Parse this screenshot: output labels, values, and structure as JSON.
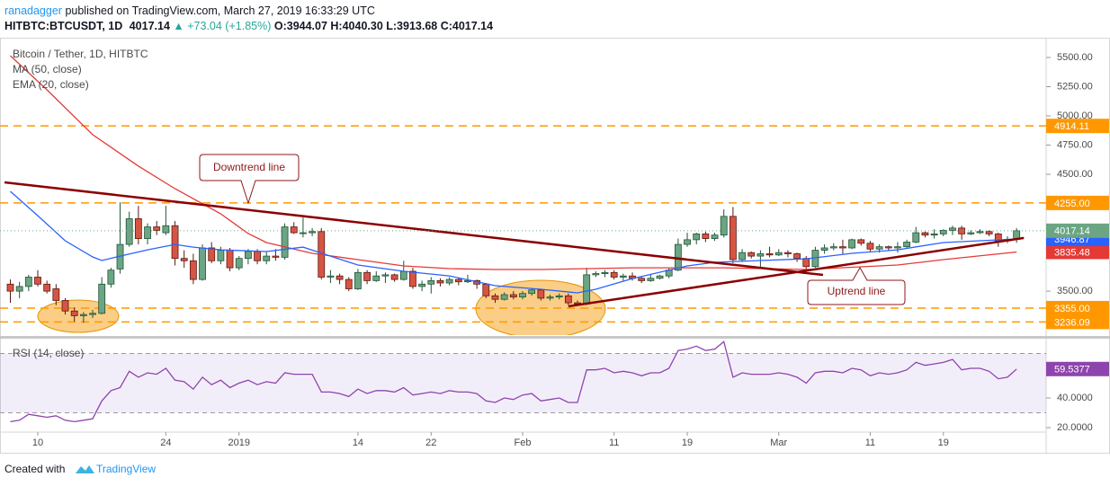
{
  "header": {
    "publisher": "ranadagger",
    "published": "published on TradingView.com, March 27, 2019 16:33:29 UTC",
    "symbol": "HITBTC:BTCUSDT, 1D",
    "last": "4017.14",
    "change": "▲ +73.04 (+1.85%)",
    "ohlc": "O:3944.07 H:4040.30 L:3913.68 C:4017.14"
  },
  "footer": {
    "created": "Created with",
    "brand": "TradingView"
  },
  "chart_data": [
    {
      "type": "candlestick",
      "title": "Bitcoin / Tether, 1D, HITBTC",
      "up_color": "#6ba583",
      "down_color": "#d75442",
      "xlim": [
        -1.13,
        113.23
      ],
      "ylim": [
        3124,
        5669
      ],
      "yticks": [
        {
          "value": 3500,
          "label": "3500.00"
        },
        {
          "value": 4500,
          "label": "4500.00"
        },
        {
          "value": 4750,
          "label": "4750.00"
        },
        {
          "value": 5000,
          "label": "5000.00"
        },
        {
          "value": 5250,
          "label": "5250.00"
        },
        {
          "value": 5500,
          "label": "5500.00"
        }
      ],
      "ohlc": [
        [
          3560,
          3600,
          3400,
          3500
        ],
        [
          3500,
          3580,
          3440,
          3540
        ],
        [
          3540,
          3640,
          3500,
          3620
        ],
        [
          3620,
          3680,
          3540,
          3560
        ],
        [
          3560,
          3590,
          3480,
          3500
        ],
        [
          3520,
          3560,
          3380,
          3420
        ],
        [
          3420,
          3440,
          3300,
          3330
        ],
        [
          3330,
          3360,
          3240,
          3290
        ],
        [
          3290,
          3320,
          3230,
          3300
        ],
        [
          3300,
          3340,
          3270,
          3310
        ],
        [
          3310,
          3620,
          3300,
          3560
        ],
        [
          3560,
          3700,
          3530,
          3680
        ],
        [
          3690,
          4260,
          3650,
          3900
        ],
        [
          3900,
          4180,
          3880,
          4120
        ],
        [
          4120,
          4230,
          3900,
          3950
        ],
        [
          3950,
          4080,
          3900,
          4050
        ],
        [
          4050,
          4100,
          3980,
          4020
        ],
        [
          4000,
          4230,
          3980,
          4060
        ],
        [
          4060,
          4100,
          3720,
          3780
        ],
        [
          3780,
          3850,
          3700,
          3760
        ],
        [
          3760,
          3820,
          3560,
          3600
        ],
        [
          3600,
          3900,
          3590,
          3870
        ],
        [
          3870,
          3920,
          3740,
          3760
        ],
        [
          3760,
          3880,
          3730,
          3850
        ],
        [
          3850,
          3870,
          3670,
          3700
        ],
        [
          3700,
          3800,
          3680,
          3780
        ],
        [
          3780,
          3860,
          3730,
          3840
        ],
        [
          3840,
          3860,
          3730,
          3760
        ],
        [
          3760,
          3840,
          3730,
          3800
        ],
        [
          3800,
          3860,
          3760,
          3790
        ],
        [
          3790,
          4080,
          3770,
          4050
        ],
        [
          4050,
          4090,
          3990,
          4000
        ],
        [
          4000,
          4130,
          3960,
          4000
        ],
        [
          4000,
          4040,
          3970,
          4010
        ],
        [
          4010,
          4040,
          3600,
          3620
        ],
        [
          3620,
          3680,
          3570,
          3630
        ],
        [
          3630,
          3650,
          3560,
          3600
        ],
        [
          3600,
          3620,
          3500,
          3520
        ],
        [
          3520,
          3690,
          3510,
          3660
        ],
        [
          3660,
          3680,
          3560,
          3590
        ],
        [
          3590,
          3670,
          3580,
          3630
        ],
        [
          3630,
          3660,
          3570,
          3640
        ],
        [
          3640,
          3650,
          3580,
          3600
        ],
        [
          3600,
          3760,
          3590,
          3670
        ],
        [
          3670,
          3700,
          3520,
          3540
        ],
        [
          3540,
          3590,
          3500,
          3560
        ],
        [
          3560,
          3620,
          3480,
          3590
        ],
        [
          3590,
          3610,
          3540,
          3570
        ],
        [
          3570,
          3620,
          3550,
          3600
        ],
        [
          3600,
          3610,
          3550,
          3580
        ],
        [
          3580,
          3640,
          3570,
          3590
        ],
        [
          3590,
          3600,
          3520,
          3560
        ],
        [
          3560,
          3570,
          3440,
          3460
        ],
        [
          3460,
          3480,
          3400,
          3430
        ],
        [
          3430,
          3490,
          3420,
          3470
        ],
        [
          3470,
          3500,
          3430,
          3450
        ],
        [
          3450,
          3500,
          3430,
          3480
        ],
        [
          3480,
          3520,
          3460,
          3510
        ],
        [
          3510,
          3520,
          3420,
          3440
        ],
        [
          3440,
          3470,
          3420,
          3450
        ],
        [
          3450,
          3480,
          3430,
          3460
        ],
        [
          3460,
          3480,
          3380,
          3400
        ],
        [
          3400,
          3420,
          3380,
          3390
        ],
        [
          3390,
          3700,
          3380,
          3640
        ],
        [
          3640,
          3670,
          3620,
          3650
        ],
        [
          3650,
          3680,
          3620,
          3660
        ],
        [
          3660,
          3680,
          3600,
          3620
        ],
        [
          3620,
          3650,
          3590,
          3630
        ],
        [
          3630,
          3660,
          3590,
          3610
        ],
        [
          3610,
          3630,
          3570,
          3590
        ],
        [
          3590,
          3640,
          3580,
          3610
        ],
        [
          3610,
          3640,
          3600,
          3630
        ],
        [
          3630,
          3700,
          3610,
          3680
        ],
        [
          3680,
          3950,
          3670,
          3900
        ],
        [
          3900,
          4000,
          3880,
          3940
        ],
        [
          3940,
          4000,
          3900,
          3990
        ],
        [
          3990,
          4010,
          3920,
          3950
        ],
        [
          3950,
          4000,
          3930,
          3980
        ],
        [
          3980,
          4200,
          3960,
          4140
        ],
        [
          4140,
          4220,
          3740,
          3770
        ],
        [
          3770,
          3860,
          3750,
          3830
        ],
        [
          3830,
          3840,
          3780,
          3800
        ],
        [
          3800,
          3850,
          3700,
          3820
        ],
        [
          3820,
          3880,
          3790,
          3810
        ],
        [
          3810,
          3860,
          3800,
          3830
        ],
        [
          3830,
          3850,
          3790,
          3820
        ],
        [
          3820,
          3830,
          3750,
          3780
        ],
        [
          3780,
          3800,
          3680,
          3710
        ],
        [
          3710,
          3880,
          3700,
          3850
        ],
        [
          3850,
          3900,
          3820,
          3870
        ],
        [
          3870,
          3910,
          3850,
          3880
        ],
        [
          3880,
          3940,
          3820,
          3870
        ],
        [
          3870,
          3950,
          3860,
          3940
        ],
        [
          3940,
          3950,
          3890,
          3910
        ],
        [
          3910,
          3930,
          3840,
          3860
        ],
        [
          3860,
          3900,
          3830,
          3880
        ],
        [
          3880,
          3890,
          3850,
          3870
        ],
        [
          3870,
          3920,
          3830,
          3880
        ],
        [
          3880,
          3940,
          3870,
          3920
        ],
        [
          3920,
          4050,
          3910,
          4000
        ],
        [
          4000,
          4010,
          3960,
          3980
        ],
        [
          3980,
          4030,
          3950,
          3990
        ],
        [
          3990,
          4030,
          3970,
          4020
        ],
        [
          4020,
          4060,
          3980,
          4040
        ],
        [
          4040,
          4060,
          3940,
          3990
        ],
        [
          3990,
          4020,
          3980,
          4000
        ],
        [
          4000,
          4030,
          3990,
          4010
        ],
        [
          4010,
          4020,
          3970,
          3990
        ],
        [
          3990,
          4000,
          3880,
          3930
        ],
        [
          3930,
          3970,
          3910,
          3944
        ],
        [
          3944.07,
          4040.3,
          3913.68,
          4017.14
        ]
      ],
      "series": [
        {
          "name": "MA (50, close)",
          "color": "#e53935",
          "x": [
            0,
            4,
            9,
            14,
            18,
            23,
            26,
            28,
            33,
            38,
            43,
            48,
            53,
            58,
            68,
            78,
            87,
            97,
            102,
            110
          ],
          "values": [
            5515,
            5223,
            4839,
            4570,
            4377,
            4162,
            3993,
            3916,
            3824,
            3770,
            3716,
            3693,
            3685,
            3685,
            3700,
            3700,
            3685,
            3724,
            3770,
            3835.48
          ]
        },
        {
          "name": "EMA (20, close)",
          "color": "#2962ff",
          "x": [
            0,
            3,
            6,
            9,
            10,
            12,
            15,
            18,
            20,
            23,
            28,
            32,
            35,
            38,
            43,
            48,
            53,
            58,
            62,
            64,
            68,
            74,
            77,
            82,
            87,
            92,
            97,
            102,
            110
          ],
          "values": [
            4354,
            4146,
            3931,
            3793,
            3762,
            3800,
            3854,
            3900,
            3877,
            3854,
            3839,
            3877,
            3800,
            3724,
            3670,
            3631,
            3547,
            3516,
            3485,
            3516,
            3608,
            3716,
            3747,
            3762,
            3777,
            3824,
            3854,
            3916,
            3946.87
          ]
        }
      ],
      "levels": [
        {
          "value": 4914.11,
          "color": "#ff9800"
        },
        {
          "value": 4255,
          "label": "4255.00",
          "color": "#ff9800"
        },
        {
          "value": 3355,
          "label": "3355.00",
          "color": "#ff9800"
        },
        {
          "value": 3236.09,
          "color": "#ff9800"
        }
      ],
      "trendlines": [
        {
          "color": "#8b0000",
          "from": [
            -0.64,
            4431
          ],
          "to": [
            88.84,
            3639
          ]
        },
        {
          "color": "#8b0000",
          "from": [
            61,
            3370
          ],
          "to": [
            110.8,
            3955
          ]
        }
      ],
      "annotations": [
        "Downtrend line",
        "Uptrend line"
      ]
    },
    {
      "type": "line",
      "xlim": [
        -1.13,
        113.23
      ],
      "ylim": [
        17,
        79.4
      ],
      "yticks": [
        {
          "value": 20,
          "label": "20.0000"
        },
        {
          "value": 40,
          "label": "40.0000"
        }
      ],
      "bands": [
        30,
        70
      ],
      "xticks": [
        {
          "value": 3,
          "label": "10"
        },
        {
          "value": 17,
          "label": "24"
        },
        {
          "value": 25,
          "label": "2019"
        },
        {
          "value": 38,
          "label": "14"
        },
        {
          "value": 46,
          "label": "22"
        },
        {
          "value": 56,
          "label": "Feb"
        },
        {
          "value": 66,
          "label": "11"
        },
        {
          "value": 74,
          "label": "19"
        },
        {
          "value": 84,
          "label": "Mar"
        },
        {
          "value": 94,
          "label": "11"
        },
        {
          "value": 102,
          "label": "19"
        }
      ],
      "series": [
        {
          "name": "RSI (14, close)",
          "color": "#8e44ad",
          "values": [
            24,
            25,
            29,
            28,
            27,
            28,
            25,
            24,
            25,
            26,
            38,
            45,
            47,
            58,
            54,
            57,
            56,
            60,
            52,
            51,
            46,
            54,
            49,
            52,
            47,
            50,
            52,
            49,
            51,
            50,
            57,
            56,
            56,
            56,
            44,
            44,
            43,
            41,
            46,
            43,
            45,
            45,
            44,
            47,
            42,
            43,
            44,
            43,
            45,
            44,
            44,
            43,
            38,
            37,
            40,
            39,
            42,
            43,
            38,
            39,
            40,
            37,
            37,
            59,
            59,
            60,
            57,
            58,
            57,
            55,
            57,
            57,
            60,
            72,
            73,
            75,
            72,
            73,
            78,
            54,
            57,
            56,
            56,
            56,
            57,
            56,
            54,
            50,
            57,
            58,
            58,
            57,
            60,
            59,
            55,
            57,
            56,
            57,
            59,
            64,
            62,
            63,
            64,
            66,
            59,
            60,
            60,
            58,
            53,
            54,
            59.5377
          ]
        }
      ]
    }
  ]
}
